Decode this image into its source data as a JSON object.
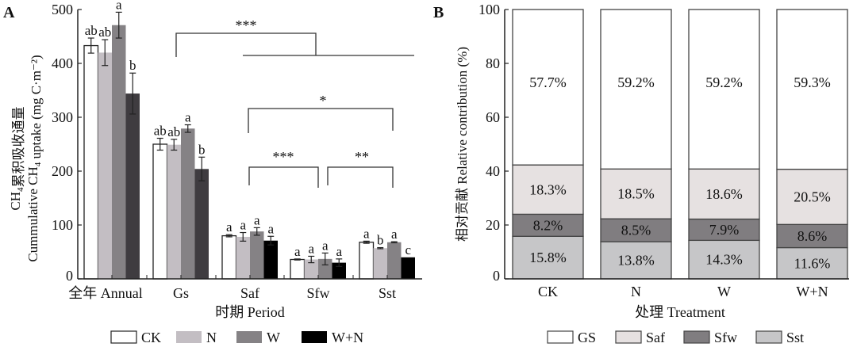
{
  "chart_data": [
    {
      "panel": "A",
      "type": "bar",
      "title": "",
      "xlabel": "时期 Period",
      "ylabel_line1": "CH4累积吸收通量",
      "ylabel_line2": "Cummulative CH4 uptake (mg C·m⁻²)",
      "ylim": [
        0,
        500
      ],
      "yticks": [
        0,
        100,
        200,
        300,
        400,
        500
      ],
      "categories": [
        "全年 Annual",
        "Gs",
        "Saf",
        "Sfw",
        "Sst"
      ],
      "series": [
        {
          "name": "CK",
          "color": "#ffffff",
          "values": [
            433,
            250,
            80,
            36,
            68
          ],
          "errors": [
            14,
            11,
            2,
            1,
            2
          ],
          "letters": [
            "ab",
            "ab",
            "a",
            "a",
            "a"
          ]
        },
        {
          "name": "N",
          "color": "#c3bec3",
          "values": [
            420,
            249,
            78,
            36,
            57
          ],
          "errors": [
            24,
            10,
            8,
            6,
            1
          ],
          "letters": [
            "ab",
            "ab",
            "a",
            "a",
            "b"
          ]
        },
        {
          "name": "W",
          "color": "#858285",
          "values": [
            471,
            279,
            88,
            37,
            68
          ],
          "errors": [
            24,
            7,
            7,
            11,
            1
          ],
          "letters": [
            "a",
            "a",
            "a",
            "a",
            "a"
          ]
        },
        {
          "name": "W+N",
          "colors_by_group": [
            "#3f3c40",
            "#3f3c40",
            "#000000",
            "#000000",
            "#000000"
          ],
          "color": "#000000",
          "values": [
            344,
            204,
            71,
            30,
            40
          ],
          "errors": [
            38,
            22,
            8,
            7,
            0
          ],
          "letters": [
            "b",
            "b",
            "a",
            "a",
            "c"
          ]
        }
      ],
      "significance": [
        {
          "label": "***",
          "from": "Gs",
          "to": "Saf–Sst"
        },
        {
          "label": "*",
          "from": "Saf",
          "to": "Sst"
        },
        {
          "label": "***",
          "from": "Saf",
          "to": "Sfw"
        },
        {
          "label": "**",
          "from": "Sfw",
          "to": "Sst"
        }
      ],
      "legend": {
        "placement": "bottom",
        "entries": [
          "CK",
          "N",
          "W",
          "W+N"
        ]
      }
    },
    {
      "panel": "B",
      "type": "bar",
      "stacked": true,
      "xlabel": "处理 Treatment",
      "ylabel": "相对贡献 Relative contribution (%)",
      "ylim": [
        0,
        100
      ],
      "yticks": [
        0,
        20,
        40,
        60,
        80,
        100
      ],
      "categories": [
        "CK",
        "N",
        "W",
        "W+N"
      ],
      "series": [
        {
          "name": "Sst",
          "color": "#c6c6c8",
          "values": [
            15.8,
            13.8,
            14.3,
            11.6
          ],
          "labels": [
            "15.8%",
            "13.8%",
            "14.3%",
            "11.6%"
          ]
        },
        {
          "name": "Sfw",
          "color": "#807d80",
          "values": [
            8.2,
            8.5,
            7.9,
            8.6
          ],
          "labels": [
            "8.2%",
            "8.5%",
            "7.9%",
            "8.6%"
          ]
        },
        {
          "name": "Saf",
          "color": "#e6e1e1",
          "values": [
            18.3,
            18.5,
            18.6,
            20.5
          ],
          "labels": [
            "18.3%",
            "18.5%",
            "18.6%",
            "20.5%"
          ]
        },
        {
          "name": "GS",
          "color": "#ffffff",
          "values": [
            57.7,
            59.2,
            59.2,
            59.3
          ],
          "labels": [
            "57.7%",
            "59.2%",
            "59.2%",
            "59.3%"
          ]
        }
      ],
      "legend": {
        "placement": "bottom",
        "entries": [
          "GS",
          "Saf",
          "Sfw",
          "Sst"
        ]
      }
    }
  ]
}
